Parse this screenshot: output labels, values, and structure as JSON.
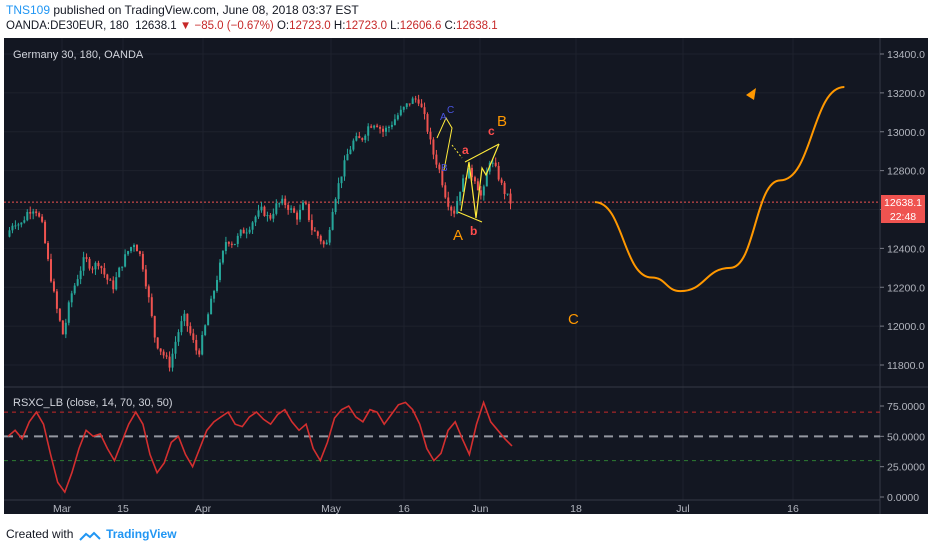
{
  "header": {
    "author": "TNS109",
    "published_text": "published on TradingView.com, June 08, 2018 03:37 EST",
    "symbol": "OANDA:DE30EUR, 180",
    "last": "12638.1",
    "change": "−85.0 (−0.67%)",
    "o_label": "O:",
    "o_value": "12723.0",
    "h_label": "H:",
    "h_value": "12723.0",
    "l_label": "L:",
    "l_value": "12606.6",
    "c_label": "C:",
    "c_value": "12638.1"
  },
  "chart": {
    "instrument_label": "Germany 30, 180, OANDA",
    "price_badge": "12638.1",
    "time_badge": "22:48",
    "indicator_label": "RSXC_LB (close, 14, 70, 30, 50)"
  },
  "footer": {
    "created_with": "Created with",
    "brand": "TradingView"
  },
  "colors": {
    "background": "#131722",
    "bull": "#26a69a",
    "bear": "#ef5350",
    "projection": "#ff9800",
    "rsi_line": "#d32f2f",
    "wave_small": "#4a56e2",
    "wave_minor": "#ff4d4d",
    "channel": "#ffeb3b"
  },
  "chart_data": [
    {
      "type": "candlestick",
      "title": "Germany 30, 180, OANDA",
      "x_ticks": [
        "Mar",
        "15",
        "Apr",
        "May",
        "16",
        "Jun",
        "18",
        "Jul",
        "16"
      ],
      "y_ticks": [
        11800,
        12000,
        12200,
        12400,
        12600,
        12800,
        13000,
        13200,
        13400
      ],
      "ylim": [
        11700,
        13500
      ],
      "last_price": 12638.1,
      "approx_closes": [
        12460,
        12540,
        12520,
        12590,
        12610,
        12520,
        12300,
        12100,
        11950,
        12150,
        12250,
        12350,
        12300,
        12330,
        12250,
        12200,
        12300,
        12380,
        12430,
        12350,
        12150,
        11920,
        11860,
        11800,
        11950,
        12050,
        11950,
        11850,
        12000,
        12150,
        12300,
        12450,
        12420,
        12480,
        12500,
        12560,
        12600,
        12550,
        12620,
        12640,
        12600,
        12560,
        12640,
        12500,
        12460,
        12400,
        12620,
        12760,
        12880,
        12960,
        12960,
        13030,
        13050,
        13000,
        13030,
        13080,
        13120,
        13160,
        13170,
        13060,
        12900,
        12800,
        12650,
        12580,
        12720,
        12800,
        12760,
        12650,
        12860,
        12800,
        12700,
        12638
      ],
      "projection_points": [
        {
          "date": "2018-06-07",
          "value": 12638
        },
        {
          "date": "2018-06-15",
          "value": 12250
        },
        {
          "date": "2018-06-19",
          "value": 12180
        },
        {
          "date": "2018-06-26",
          "value": 12300
        },
        {
          "date": "2018-07-03",
          "value": 12750
        },
        {
          "date": "2018-07-12",
          "value": 13230
        }
      ]
    },
    {
      "type": "line",
      "title": "RSXC_LB (close, 14, 70, 30, 50)",
      "y_ticks": [
        0,
        25,
        50,
        75
      ],
      "levels": {
        "overbought": 70,
        "middle": 50,
        "oversold": 30
      },
      "ylim": [
        0,
        85
      ],
      "approx_values": [
        50,
        55,
        48,
        62,
        70,
        60,
        35,
        12,
        4,
        20,
        40,
        55,
        50,
        52,
        40,
        30,
        45,
        60,
        70,
        60,
        35,
        20,
        28,
        45,
        50,
        35,
        25,
        40,
        55,
        62,
        66,
        70,
        60,
        58,
        66,
        70,
        64,
        60,
        68,
        72,
        62,
        55,
        60,
        40,
        30,
        45,
        65,
        72,
        75,
        66,
        62,
        72,
        70,
        60,
        68,
        76,
        78,
        72,
        60,
        40,
        30,
        36,
        55,
        62,
        48,
        35,
        60,
        78,
        62,
        55,
        48,
        42
      ]
    }
  ],
  "annotations": {
    "wave_large": [
      "A",
      "B",
      "C"
    ],
    "wave_minor": [
      "a",
      "b",
      "c"
    ],
    "wave_small": [
      "A",
      "C",
      "B"
    ]
  }
}
